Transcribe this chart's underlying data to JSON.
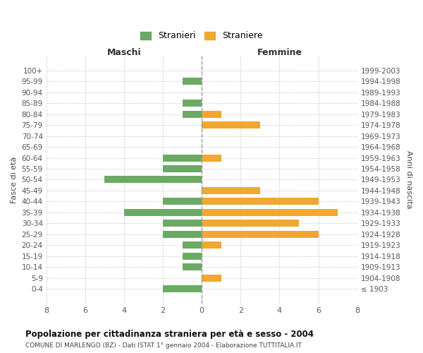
{
  "age_groups": [
    "100+",
    "95-99",
    "90-94",
    "85-89",
    "80-84",
    "75-79",
    "70-74",
    "65-69",
    "60-64",
    "55-59",
    "50-54",
    "45-49",
    "40-44",
    "35-39",
    "30-34",
    "25-29",
    "20-24",
    "15-19",
    "10-14",
    "5-9",
    "0-4"
  ],
  "birth_years": [
    "≤ 1903",
    "1904-1908",
    "1909-1913",
    "1914-1918",
    "1919-1923",
    "1924-1928",
    "1929-1933",
    "1934-1938",
    "1939-1943",
    "1944-1948",
    "1949-1953",
    "1954-1958",
    "1959-1963",
    "1964-1968",
    "1969-1973",
    "1974-1978",
    "1979-1983",
    "1984-1988",
    "1989-1993",
    "1994-1998",
    "1999-2003"
  ],
  "maschi": [
    0,
    1,
    0,
    1,
    1,
    0,
    0,
    0,
    2,
    2,
    5,
    0,
    2,
    4,
    2,
    2,
    1,
    1,
    1,
    0,
    2
  ],
  "femmine": [
    0,
    0,
    0,
    0,
    1,
    3,
    0,
    0,
    1,
    0,
    0,
    3,
    6,
    7,
    5,
    6,
    1,
    0,
    0,
    1,
    0
  ],
  "color_maschi": "#6aaa64",
  "color_femmine": "#f0a830",
  "title": "Popolazione per cittadinanza straniera per età e sesso - 2004",
  "subtitle": "COMUNE DI MARLENGO (BZ) - Dati ISTAT 1° gennaio 2004 - Elaborazione TUTTITALIA.IT",
  "xlabel_left": "Maschi",
  "xlabel_right": "Femmine",
  "ylabel": "Fasce di età",
  "ylabel_right": "Anni di nascita",
  "legend_maschi": "Stranieri",
  "legend_femmine": "Straniere",
  "xlim": 8,
  "background_color": "#ffffff",
  "grid_color": "#cccccc"
}
